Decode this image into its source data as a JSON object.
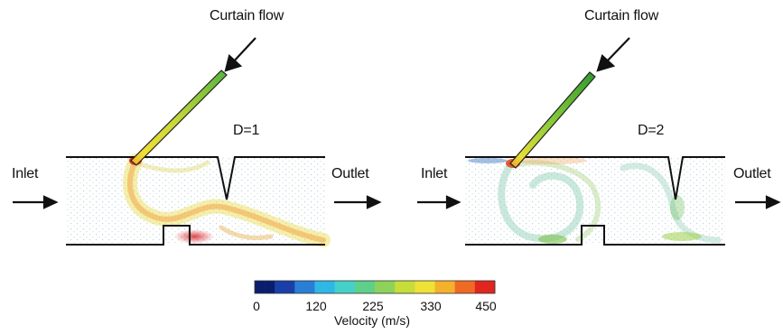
{
  "panels": [
    {
      "curtain_label": "Curtain flow",
      "case_label": "D=1",
      "inlet_label": "Inlet",
      "outlet_label": "Outlet"
    },
    {
      "curtain_label": "Curtain flow",
      "case_label": "D=2",
      "inlet_label": "Inlet",
      "outlet_label": "Outlet"
    }
  ],
  "colorbar": {
    "ticks": [
      "0",
      "120",
      "225",
      "330",
      "450"
    ],
    "label": "Velocity (m/s)",
    "min": 0,
    "max": 450,
    "colors": [
      "#0a1e6e",
      "#1a3fa8",
      "#2a7fd4",
      "#2fb8e6",
      "#45d1c9",
      "#5fcf8c",
      "#8ed25a",
      "#c6dd3a",
      "#eee236",
      "#f4b12c",
      "#ee6a25",
      "#e0261f"
    ]
  },
  "colors": {
    "channel_wall": "#111111",
    "low_speed_vector": "#8fb8c8",
    "high_speed": "#e0261f"
  }
}
